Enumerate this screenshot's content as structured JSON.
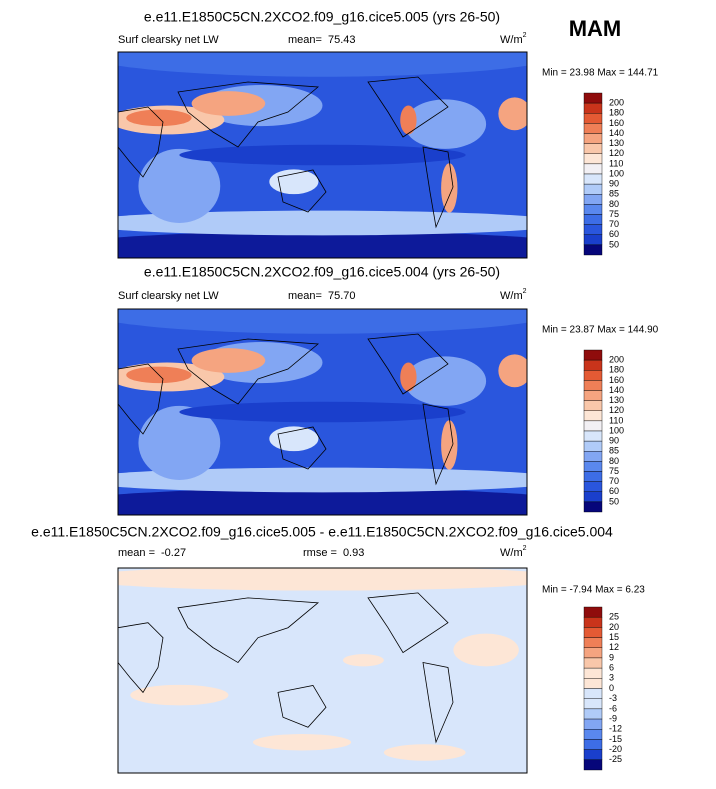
{
  "season": "MAM",
  "panels": [
    {
      "title": "e.e11.E1850C5CN.2XCO2.f09_g16.cice5.005 (yrs 26-50)",
      "variable": "Surf clearsky net LW",
      "mean_label": "mean=",
      "mean": "75.43",
      "units": "W/m",
      "units_exp": "2",
      "stats": "Min = 23.98 Max = 144.71",
      "colorbar": {
        "labels": [
          "200",
          "180",
          "160",
          "140",
          "130",
          "120",
          "110",
          "100",
          "90",
          "85",
          "80",
          "75",
          "70",
          "60",
          "50"
        ],
        "colors": [
          "#8f0c0c",
          "#c9341b",
          "#e45a34",
          "#ef7f57",
          "#f5a480",
          "#f9c7aa",
          "#fde6d6",
          "#f2f0f4",
          "#d8e6fb",
          "#b0cbf8",
          "#82a6f3",
          "#5a88ee",
          "#3d6de6",
          "#2a56dd",
          "#1a3fcc",
          "#06067a"
        ]
      }
    },
    {
      "title": "e.e11.E1850C5CN.2XCO2.f09_g16.cice5.004 (yrs 26-50)",
      "variable": "Surf clearsky net LW",
      "mean_label": "mean=",
      "mean": "75.70",
      "units": "W/m",
      "units_exp": "2",
      "stats": "Min = 23.87 Max = 144.90",
      "colorbar": {
        "labels": [
          "200",
          "180",
          "160",
          "140",
          "130",
          "120",
          "110",
          "100",
          "90",
          "85",
          "80",
          "75",
          "70",
          "60",
          "50"
        ],
        "colors": [
          "#8f0c0c",
          "#c9341b",
          "#e45a34",
          "#ef7f57",
          "#f5a480",
          "#f9c7aa",
          "#fde6d6",
          "#f2f0f4",
          "#d8e6fb",
          "#b0cbf8",
          "#82a6f3",
          "#5a88ee",
          "#3d6de6",
          "#2a56dd",
          "#1a3fcc",
          "#06067a"
        ]
      }
    },
    {
      "title": "e.e11.E1850C5CN.2XCO2.f09_g16.cice5.005 - e.e11.E1850C5CN.2XCO2.f09_g16.cice5.004",
      "mean_label": "mean =",
      "mean": "-0.27",
      "rmse_label": "rmse =",
      "rmse": "0.93",
      "units": "W/m",
      "units_exp": "2",
      "stats": "Min = -7.94 Max =  6.23",
      "colorbar": {
        "labels": [
          "25",
          "20",
          "15",
          "12",
          "9",
          "6",
          "3",
          "0",
          "-3",
          "-6",
          "-9",
          "-12",
          "-15",
          "-20",
          "-25"
        ],
        "colors": [
          "#8f0c0c",
          "#c9341b",
          "#e45a34",
          "#ef7f57",
          "#f5a480",
          "#f9c7aa",
          "#fde6d6",
          "#fde6d6",
          "#d8e6fb",
          "#d8e6fb",
          "#b0cbf8",
          "#82a6f3",
          "#5a88ee",
          "#3d6de6",
          "#1a3fcc",
          "#06067a"
        ]
      }
    }
  ]
}
